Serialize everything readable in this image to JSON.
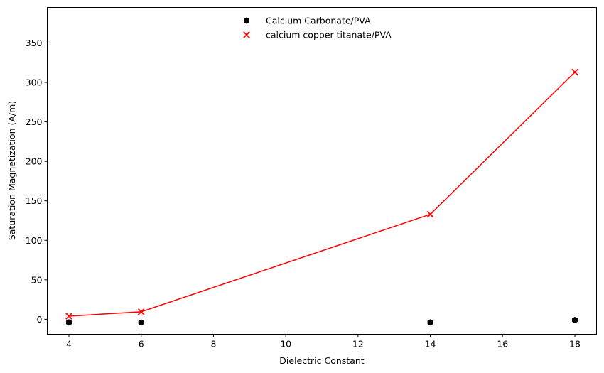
{
  "chart_data": {
    "type": "scatter",
    "xlabel": "Dielectric Constant",
    "ylabel": "Saturation Magnetization (A/m)",
    "xlim": [
      3.4,
      18.6
    ],
    "ylim": [
      -19,
      395
    ],
    "xticks": [
      4,
      6,
      8,
      10,
      12,
      14,
      16,
      18
    ],
    "yticks": [
      0,
      50,
      100,
      150,
      200,
      250,
      300,
      350
    ],
    "grid": false,
    "legend_position": "top-center",
    "series": [
      {
        "name": "Calcium Carbonate/PVA",
        "marker": "hexagon",
        "color": "#000000",
        "line": false,
        "points": [
          {
            "x": 4,
            "y": -4
          },
          {
            "x": 6,
            "y": -4
          },
          {
            "x": 14,
            "y": -4
          },
          {
            "x": 18,
            "y": -1
          }
        ]
      },
      {
        "name": "calcium copper titanate/PVA",
        "marker": "x",
        "color": "#ff0000",
        "line": true,
        "points": [
          {
            "x": 4,
            "y": 4
          },
          {
            "x": 6,
            "y": 9.5
          },
          {
            "x": 14,
            "y": 133
          },
          {
            "x": 18,
            "y": 313
          }
        ]
      }
    ]
  }
}
